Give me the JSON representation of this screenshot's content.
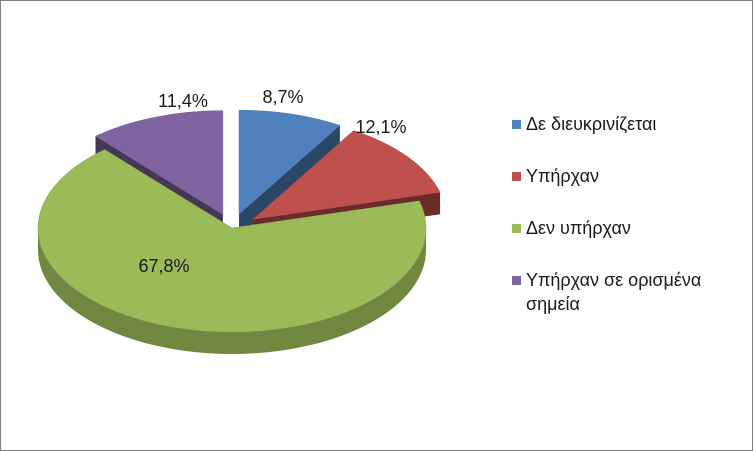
{
  "chart_data": {
    "type": "pie",
    "style": "3d-exploded",
    "legend_position": "right",
    "slices": [
      {
        "label": "Δε διευκρινίζεται",
        "value": 8.7,
        "value_label": "8,7%",
        "color": "#4f81bd"
      },
      {
        "label": "Υπήρχαν",
        "value": 12.1,
        "value_label": "12,1%",
        "color": "#c0504d"
      },
      {
        "label": "Δεν υπήρχαν",
        "value": 67.8,
        "value_label": "67,8%",
        "color": "#9bbb59"
      },
      {
        "label": "Υπήρχαν σε ορισμένα σημεία",
        "value": 11.4,
        "value_label": "11,4%",
        "color": "#8064a2"
      }
    ]
  }
}
